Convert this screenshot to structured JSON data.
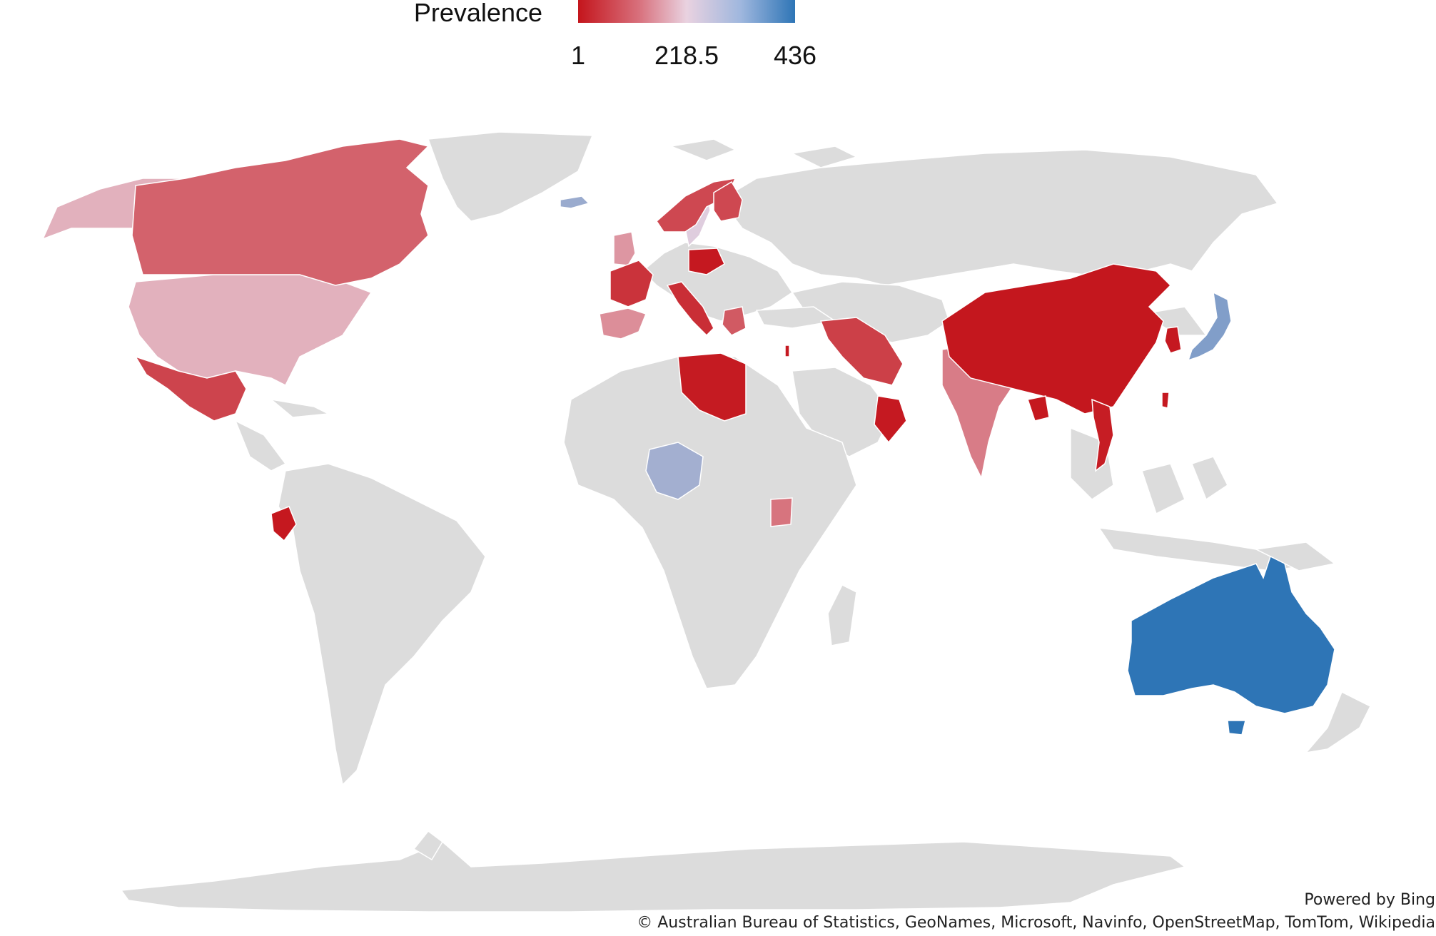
{
  "legend": {
    "title": "Prevalence",
    "min_label": "1",
    "mid_label": "218.5",
    "max_label": "436",
    "min_value": 1,
    "max_value": 436,
    "colors": {
      "low": "#c4151c",
      "mid": "#e9d2e0",
      "high": "#2e75b6",
      "no_data": "#dcdcdc"
    }
  },
  "map_data": {
    "type": "choropleth",
    "metric": "Prevalence",
    "countries": [
      {
        "name": "Australia",
        "value": 436
      },
      {
        "name": "Japan",
        "value": 340
      },
      {
        "name": "Nigeria",
        "value": 300
      },
      {
        "name": "Iceland",
        "value": 310
      },
      {
        "name": "Sweden",
        "value": 230
      },
      {
        "name": "United States",
        "value": 180
      },
      {
        "name": "Alaska",
        "value": 180
      },
      {
        "name": "Spain",
        "value": 140
      },
      {
        "name": "United Kingdom",
        "value": 150
      },
      {
        "name": "India",
        "value": 120
      },
      {
        "name": "Uganda",
        "value": 110
      },
      {
        "name": "Canada",
        "value": 90
      },
      {
        "name": "Greece",
        "value": 80
      },
      {
        "name": "Norway",
        "value": 60
      },
      {
        "name": "Finland",
        "value": 60
      },
      {
        "name": "Mexico",
        "value": 55
      },
      {
        "name": "Iran",
        "value": 50
      },
      {
        "name": "France",
        "value": 35
      },
      {
        "name": "Italy",
        "value": 30
      },
      {
        "name": "Poland",
        "value": 5
      },
      {
        "name": "China",
        "value": 3
      },
      {
        "name": "Libya",
        "value": 8
      },
      {
        "name": "Oman",
        "value": 6
      },
      {
        "name": "Ecuador",
        "value": 4
      },
      {
        "name": "South Korea",
        "value": 5
      },
      {
        "name": "Vietnam",
        "value": 10
      },
      {
        "name": "Bangladesh",
        "value": 4
      },
      {
        "name": "Taiwan",
        "value": 5
      },
      {
        "name": "Israel",
        "value": 6
      }
    ]
  },
  "credits": {
    "powered_by": "Powered by Bing",
    "attribution": "© Australian Bureau of Statistics, GeoNames, Microsoft, Navinfo, OpenStreetMap, TomTom, Wikipedia"
  }
}
